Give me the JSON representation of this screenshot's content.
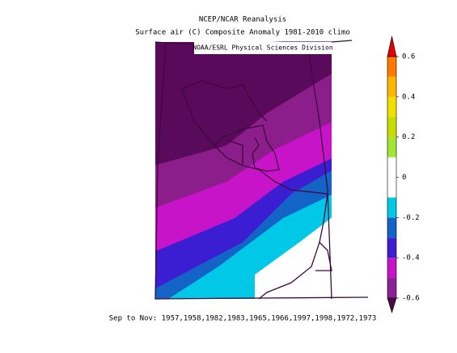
{
  "title": "NCEP/NCAR Reanalysis",
  "subtitle": "Surface air (C) Composite Anomaly 1981-2010 climo",
  "credit": "NOAA/ESRL Physical Sciences Division",
  "caption": "Sep to Nov: 1957,1958,1982,1983,1965,1966,1997,1998,1972,1973",
  "colorbar": {
    "range": [
      -0.6,
      0.6
    ],
    "ticks": [
      -0.6,
      -0.4,
      -0.2,
      0,
      0.2,
      0.4,
      0.6
    ],
    "colors": [
      "#4a0a4a",
      "#8c1e96",
      "#c814c8",
      "#3c1ed2",
      "#1464c8",
      "#00c8e6",
      "#ffffff",
      "#ffffff",
      "#a0e632",
      "#c8dc00",
      "#f0e000",
      "#ffb400",
      "#ff7800",
      "#e60000"
    ]
  }
}
